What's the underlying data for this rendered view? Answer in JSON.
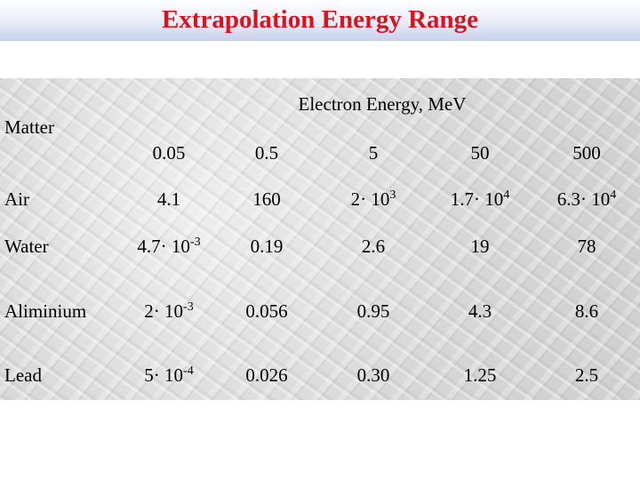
{
  "title": "Extrapolation Energy Range",
  "table": {
    "group_header": "Electron Energy, MeV",
    "row_header": "Matter",
    "columns": [
      "0.05",
      "0.5",
      "5",
      "50",
      "500"
    ],
    "rows": [
      {
        "matter": "Air",
        "cells": [
          "4.1",
          "160",
          {
            "base": "2· 10",
            "sup": "3"
          },
          {
            "base": "1.7· 10",
            "sup": "4"
          },
          {
            "base": "6.3· 10",
            "sup": "4"
          }
        ]
      },
      {
        "matter": "Water",
        "cells": [
          {
            "base": "4.7· 10",
            "sup": "-3"
          },
          "0.19",
          "2.6",
          "19",
          "78"
        ]
      },
      {
        "matter": "Aliminium",
        "cells": [
          {
            "base": "2· 10",
            "sup": "-3"
          },
          "0.056",
          "0.95",
          "4.3",
          "8.6"
        ]
      },
      {
        "matter": "Lead",
        "cells": [
          {
            "base": "5· 10",
            "sup": "-4"
          },
          "0.026",
          "0.30",
          "1.25",
          "2.5"
        ]
      }
    ]
  }
}
